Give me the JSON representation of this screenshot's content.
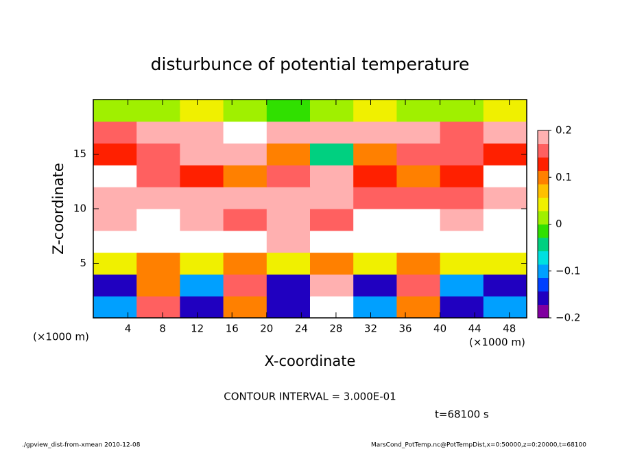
{
  "chart_data": {
    "type": "heatmap",
    "title": "disturbunce of potential temperature",
    "x_label": "X-coordinate",
    "y_label": "Z-coordinate",
    "x_unit_left": "(×1000 m)",
    "x_unit_right": "(×1000 m)",
    "contour_interval": "CONTOUR INTERVAL = 3.000E-01",
    "time_label": "t=68100 s",
    "footer_left": "./gpview_dist-from-xmean   2010-12-08",
    "footer_right": "MarsCond_PotTemp.nc@PotTempDist,x=0:50000,z=0:20000,t=68100",
    "xlim": [
      0,
      50
    ],
    "ylim": [
      0,
      20
    ],
    "xticks": [
      4,
      8,
      12,
      16,
      20,
      24,
      28,
      32,
      36,
      40,
      44,
      48
    ],
    "yticks": [
      5,
      10,
      15
    ],
    "xbins": [
      0,
      5,
      10,
      15,
      20,
      25,
      30,
      35,
      40,
      45,
      50
    ],
    "zbins": [
      0,
      2,
      4,
      6,
      8,
      10,
      12,
      14,
      16,
      18,
      20
    ],
    "z": [
      [
        -0.1,
        0.15,
        -0.15,
        0.1,
        -0.15,
        0.25,
        -0.1,
        0.1,
        -0.15,
        -0.1
      ],
      [
        -0.15,
        0.1,
        -0.1,
        0.15,
        -0.15,
        0.2,
        -0.15,
        0.15,
        -0.1,
        -0.15
      ],
      [
        0.05,
        0.1,
        0.05,
        0.1,
        0.05,
        0.1,
        0.05,
        0.1,
        0.05,
        0.05
      ],
      [
        0.25,
        0.3,
        0.25,
        0.3,
        0.2,
        0.25,
        0.25,
        0.3,
        0.25,
        0.25
      ],
      [
        0.2,
        0.25,
        0.2,
        0.15,
        0.2,
        0.15,
        0.3,
        0.3,
        0.2,
        0.25
      ],
      [
        0.18,
        0.2,
        0.2,
        0.2,
        0.18,
        0.2,
        0.15,
        0.15,
        0.15,
        0.2
      ],
      [
        0.25,
        0.15,
        0.12,
        0.1,
        0.15,
        0.2,
        0.12,
        0.1,
        0.12,
        0.25
      ],
      [
        0.12,
        0.15,
        0.18,
        0.2,
        0.1,
        -0.05,
        0.1,
        0.15,
        0.15,
        0.12
      ],
      [
        0.15,
        0.2,
        0.2,
        0.22,
        0.2,
        0.18,
        0.2,
        0.2,
        0.15,
        0.2
      ],
      [
        0.0,
        0.02,
        0.05,
        0.0,
        -0.02,
        0.0,
        0.05,
        0.02,
        0.0,
        0.05
      ]
    ],
    "clim": [
      -0.2,
      0.2
    ],
    "cticks": [
      {
        "value": -0.2,
        "label": "−0.2"
      },
      {
        "value": -0.1,
        "label": "−0.1"
      },
      0,
      0.1,
      0.2
    ],
    "colormap": [
      "#8000a0",
      "#2000c0",
      "#0040ff",
      "#00a0ff",
      "#00e0e0",
      "#00d080",
      "#30e000",
      "#a0f000",
      "#f0f000",
      "#ffc000",
      "#ff8000",
      "#ff2000",
      "#ff6060",
      "#ffb0b0"
    ],
    "overflow_color": "#ffffff"
  }
}
